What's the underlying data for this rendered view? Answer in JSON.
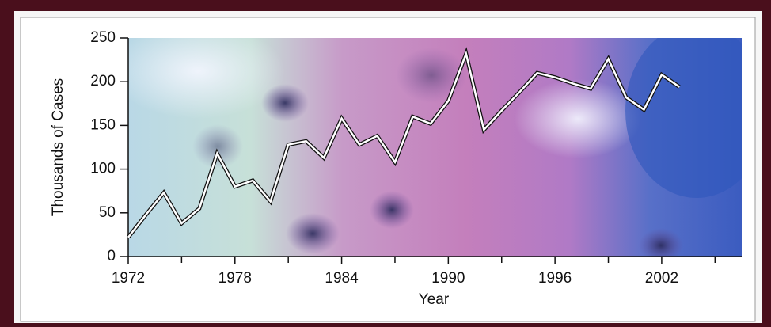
{
  "chart_data": {
    "type": "line",
    "x_label": "Year",
    "y_label": "Thousands of Cases",
    "x": [
      1972,
      1973,
      1974,
      1975,
      1976,
      1977,
      1978,
      1979,
      1980,
      1981,
      1982,
      1983,
      1984,
      1985,
      1986,
      1987,
      1988,
      1989,
      1990,
      1991,
      1992,
      1993,
      1994,
      1995,
      1996,
      1997,
      1998,
      1999,
      2000,
      2001,
      2002,
      2003
    ],
    "series": [
      {
        "color": "#ffffff",
        "values": [
          22,
          48,
          73,
          38,
          55,
          118,
          80,
          87,
          63,
          128,
          132,
          113,
          158,
          128,
          138,
          108,
          160,
          152,
          178,
          232,
          145,
          167,
          188,
          210,
          205,
          198,
          192,
          226,
          182,
          168,
          208,
          194
        ]
      }
    ],
    "xlim": [
      1972,
      2006.5
    ],
    "xticks": [
      1972,
      1978,
      1984,
      1990,
      1996,
      2002
    ],
    "minor_xticks": [
      1975,
      1981,
      1987,
      1993,
      1999,
      2005
    ],
    "ylim": [
      0,
      250
    ],
    "yticks": [
      0,
      50,
      100,
      150,
      200,
      250
    ]
  }
}
